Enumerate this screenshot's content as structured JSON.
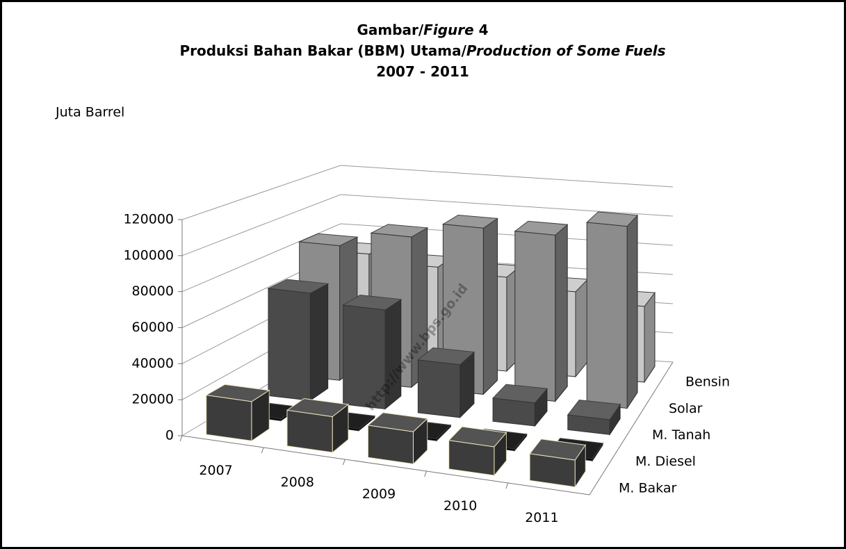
{
  "chart_data": {
    "type": "bar3d",
    "title": [
      [
        "Gambar/",
        "Figure",
        "  4"
      ],
      [
        "Produksi Bahan Bakar (BBM) Utama/",
        "Production of Some Fuels"
      ],
      [
        "2007 - 2011"
      ]
    ],
    "y_label": "Juta Barrel",
    "watermark": "http://www.bps.go.id",
    "categories": [
      "2007",
      "2008",
      "2009",
      "2010",
      "2011"
    ],
    "series": [
      {
        "name": "M. Bakar",
        "color": "#3c3c3c",
        "values": [
          22000,
          20000,
          18000,
          16000,
          15000
        ]
      },
      {
        "name": "M. Diesel",
        "color": "#000000",
        "values": [
          1000,
          1000,
          1000,
          1000,
          1000
        ]
      },
      {
        "name": "M. Tanah",
        "color": "#4a4a4a",
        "values": [
          65000,
          60000,
          32000,
          14000,
          9000
        ]
      },
      {
        "name": "Solar",
        "color": "#8c8c8c",
        "values": [
          85000,
          95000,
          105000,
          105000,
          115000
        ]
      },
      {
        "name": "Bensin",
        "color": "#c8c8c8",
        "values": [
          70000,
          65000,
          62000,
          56000,
          50000
        ]
      }
    ],
    "ylim": [
      0,
      120000
    ],
    "yticks": [
      0,
      20000,
      40000,
      60000,
      80000,
      100000,
      120000
    ],
    "grid": true
  }
}
